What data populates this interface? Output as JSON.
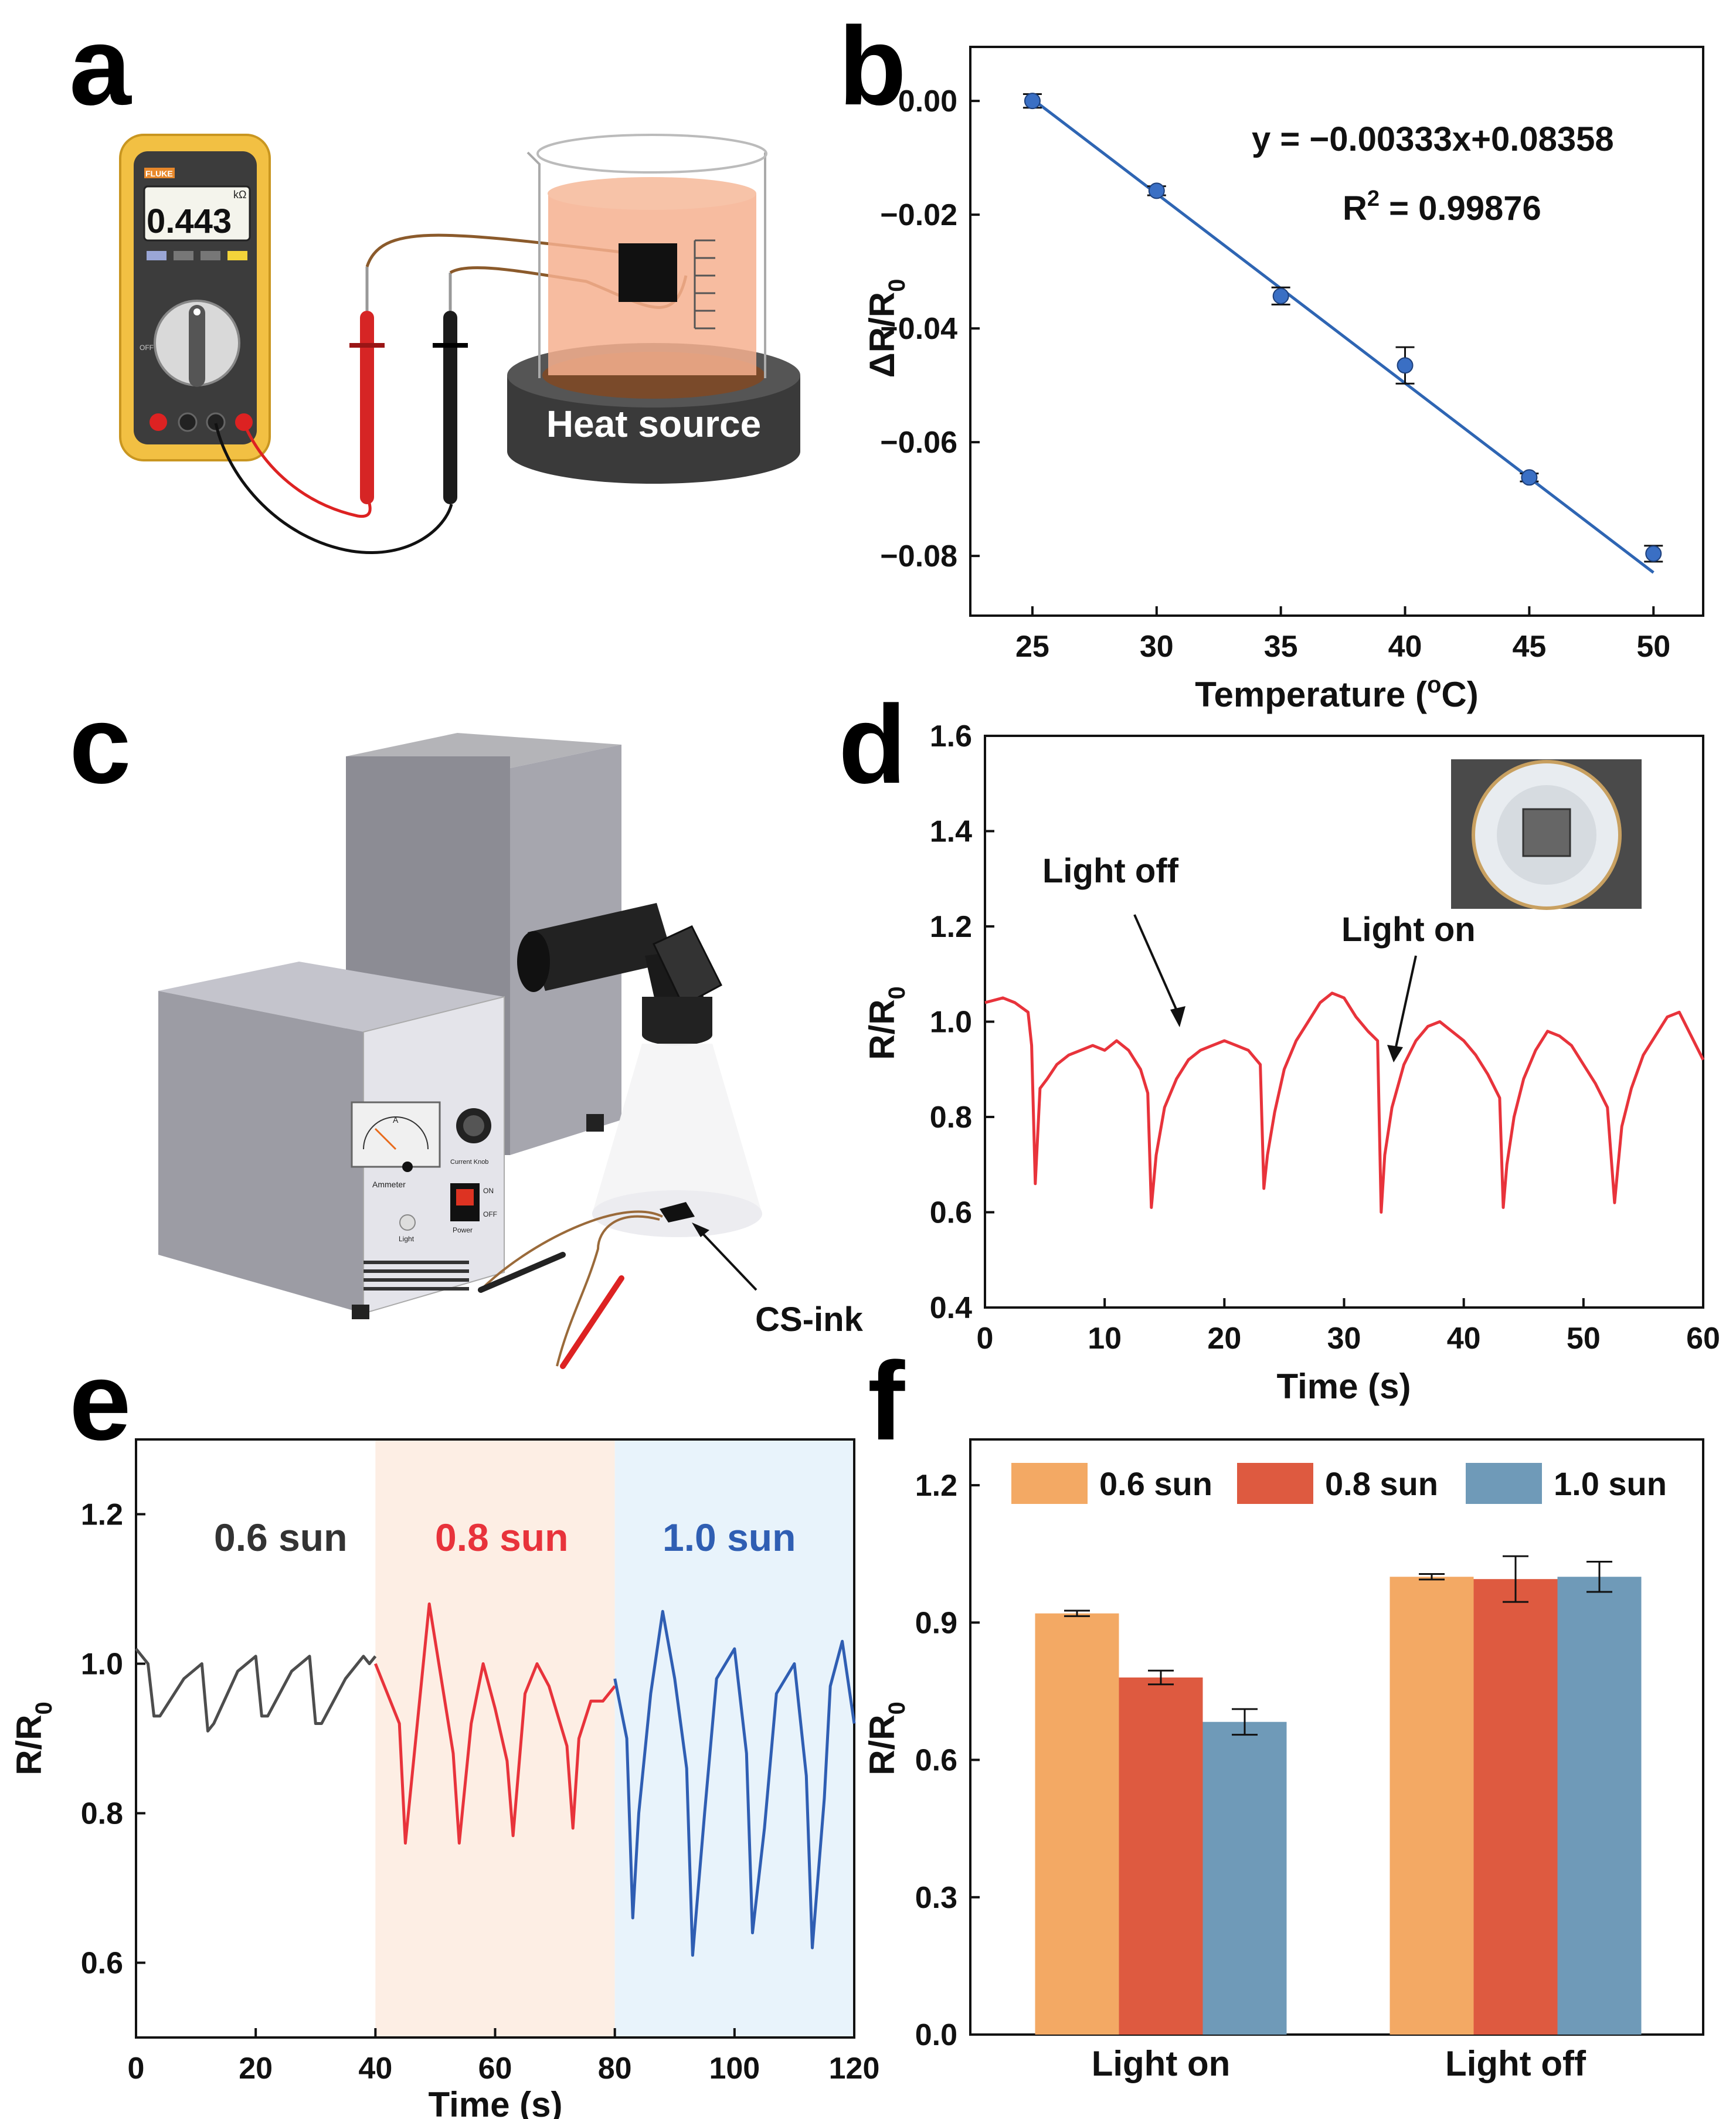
{
  "panel_labels": [
    "a",
    "b",
    "c",
    "d",
    "e",
    "f"
  ],
  "panel_a": {
    "meter_brand": "FLUKE",
    "meter_unit": "kΩ",
    "meter_reading": "0.443",
    "meter_off": "OFF",
    "heat_source_label": "Heat source"
  },
  "panel_c": {
    "ammeter_label": "Ammeter",
    "ammeter_dial": "A",
    "knob_label": "Current Knob",
    "on_label": "ON",
    "off_label": "OFF",
    "power_label": "Power",
    "light_label": "Light",
    "sample_label": "CS-ink"
  },
  "colors": {
    "fit_line": "#2e65b3",
    "points": "#3a6fc4",
    "curve_d": "#e8333b",
    "gray": "#4d4d4d",
    "red": "#e8333b",
    "blue": "#2f5eb3",
    "bar_06": "#f3a964",
    "bar_08": "#de5a40",
    "bar_10": "#6f9ab8"
  },
  "chart_data": [
    {
      "panel": "b",
      "type": "scatter",
      "xlabel": "Temperature (",
      "xlabel_sup": "o",
      "xlabel_end": "C)",
      "ylabel": "ΔR/R",
      "ylabel_sub": "0",
      "x": [
        25,
        30,
        35,
        40,
        45,
        50
      ],
      "y": [
        0.0,
        -0.0158,
        -0.0343,
        -0.0465,
        -0.0662,
        -0.0796
      ],
      "yerr": [
        0.0012,
        0.0008,
        0.0015,
        0.0032,
        0.0007,
        0.0014
      ],
      "xlim": [
        22.5,
        52
      ],
      "ylim": [
        -0.0905,
        0.0095
      ],
      "xticks": [
        25,
        30,
        35,
        40,
        45,
        50
      ],
      "yticks": [
        0.0,
        -0.02,
        -0.04,
        -0.06,
        -0.08
      ],
      "ytick_labels": [
        "0.00",
        "−0.02",
        "−0.04",
        "−0.06",
        "−0.08"
      ],
      "fit": {
        "slope": -0.00333,
        "intercept": 0.08358,
        "x_range": [
          25,
          50
        ]
      },
      "equation": "y = −0.00333x+0.08358",
      "r2_label": "R",
      "r2_sup": "2",
      "r2_value": " = 0.99876"
    },
    {
      "panel": "d",
      "type": "line",
      "xlabel": "Time (s)",
      "ylabel": "R/R",
      "ylabel_sub": "0",
      "xlim": [
        0,
        60
      ],
      "ylim": [
        0.4,
        1.6
      ],
      "xticks": [
        0,
        10,
        20,
        30,
        40,
        50,
        60
      ],
      "yticks": [
        0.4,
        0.6,
        0.8,
        1.0,
        1.2,
        1.4,
        1.6
      ],
      "ytick_labels": [
        "0.4",
        "0.6",
        "0.8",
        "1.0",
        "1.2",
        "1.4",
        "1.6"
      ],
      "annotations": [
        "Light off",
        "Light on"
      ],
      "series": [
        {
          "name": "R/R0",
          "x": [
            0,
            1.5,
            2.5,
            3.6,
            3.9,
            4.2,
            4.6,
            5.2,
            6,
            7,
            8,
            9,
            10,
            11,
            12,
            13,
            13.6,
            13.9,
            14.3,
            15,
            16,
            17,
            18,
            19,
            20,
            21,
            22,
            23,
            23.3,
            23.6,
            24.2,
            25,
            26,
            27,
            28,
            29,
            30,
            31,
            32,
            32.8,
            33.1,
            33.4,
            34,
            35,
            36,
            37,
            38,
            39,
            40,
            41,
            42,
            43,
            43.3,
            43.6,
            44.2,
            45,
            46,
            47,
            48,
            49,
            50,
            51,
            52,
            52.6,
            52.9,
            53.2,
            54,
            55,
            56,
            57,
            58,
            59,
            60
          ],
          "y": [
            1.04,
            1.05,
            1.04,
            1.02,
            0.95,
            0.66,
            0.86,
            0.88,
            0.91,
            0.93,
            0.94,
            0.95,
            0.94,
            0.96,
            0.94,
            0.9,
            0.85,
            0.61,
            0.72,
            0.82,
            0.88,
            0.92,
            0.94,
            0.95,
            0.96,
            0.95,
            0.94,
            0.91,
            0.65,
            0.72,
            0.81,
            0.9,
            0.96,
            1.0,
            1.04,
            1.06,
            1.05,
            1.01,
            0.98,
            0.96,
            0.6,
            0.72,
            0.82,
            0.91,
            0.96,
            0.99,
            1.0,
            0.98,
            0.96,
            0.93,
            0.89,
            0.84,
            0.61,
            0.7,
            0.8,
            0.88,
            0.94,
            0.98,
            0.97,
            0.95,
            0.91,
            0.87,
            0.82,
            0.62,
            0.7,
            0.78,
            0.86,
            0.93,
            0.97,
            1.01,
            1.02,
            0.97,
            0.92
          ]
        }
      ]
    },
    {
      "panel": "e",
      "type": "line",
      "xlabel": "Time (s)",
      "ylabel": "R/R",
      "ylabel_sub": "0",
      "xlim": [
        0,
        120
      ],
      "ylim": [
        0.5,
        1.3
      ],
      "xticks": [
        0,
        20,
        40,
        60,
        80,
        100,
        120
      ],
      "yticks": [
        0.6,
        0.8,
        1.0,
        1.2
      ],
      "ytick_labels": [
        "0.6",
        "0.8",
        "1.0",
        "1.2"
      ],
      "regions": [
        {
          "x": [
            40,
            80
          ],
          "color": "#fdeee4"
        },
        {
          "x": [
            80,
            120
          ],
          "color": "#e8f3fb"
        }
      ],
      "series": [
        {
          "name": "0.6 sun",
          "x": [
            0,
            2,
            3,
            4,
            8,
            11,
            12,
            13,
            17,
            20,
            21,
            22,
            26,
            29,
            30,
            31,
            35,
            38,
            39,
            40
          ],
          "y": [
            1.02,
            1.0,
            0.93,
            0.93,
            0.98,
            1.0,
            0.91,
            0.92,
            0.99,
            1.01,
            0.93,
            0.93,
            0.99,
            1.01,
            0.92,
            0.92,
            0.98,
            1.01,
            1.0,
            1.01
          ]
        },
        {
          "name": "0.8 sun",
          "x": [
            40,
            42,
            44,
            45,
            47,
            49,
            51,
            53,
            54,
            56,
            58,
            60,
            62,
            63,
            65,
            67,
            69,
            72,
            73,
            74,
            76,
            78,
            80
          ],
          "y": [
            1.0,
            0.96,
            0.92,
            0.76,
            0.92,
            1.08,
            0.98,
            0.88,
            0.76,
            0.92,
            1.0,
            0.94,
            0.87,
            0.77,
            0.96,
            1.0,
            0.97,
            0.89,
            0.78,
            0.9,
            0.95,
            0.95,
            0.97
          ]
        },
        {
          "name": "1.0 sun",
          "x": [
            80,
            82,
            83,
            84,
            86,
            88,
            90,
            92,
            93,
            95,
            97,
            100,
            102,
            103,
            105,
            107,
            110,
            112,
            113,
            115,
            116,
            118,
            120
          ],
          "y": [
            0.98,
            0.9,
            0.66,
            0.8,
            0.96,
            1.07,
            0.98,
            0.86,
            0.61,
            0.8,
            0.98,
            1.02,
            0.88,
            0.64,
            0.78,
            0.96,
            1.0,
            0.85,
            0.62,
            0.82,
            0.97,
            1.03,
            0.92
          ]
        }
      ],
      "series_labels": [
        "0.6 sun",
        "0.8 sun",
        "1.0 sun"
      ]
    },
    {
      "panel": "f",
      "type": "bar",
      "xlabel": "",
      "ylabel": "R/R",
      "ylabel_sub": "0",
      "categories": [
        "Light on",
        "Light off"
      ],
      "ylim": [
        0,
        1.3
      ],
      "yticks": [
        0.0,
        0.3,
        0.6,
        0.9,
        1.2
      ],
      "ytick_labels": [
        "0.0",
        "0.3",
        "0.6",
        "0.9",
        "1.2"
      ],
      "series": [
        {
          "name": "0.6 sun",
          "values": [
            0.92,
            1.0
          ],
          "errors": [
            0.006,
            0.006
          ]
        },
        {
          "name": "0.8 sun",
          "values": [
            0.78,
            0.995
          ],
          "errors": [
            0.015,
            0.05
          ]
        },
        {
          "name": "1.0 sun",
          "values": [
            0.683,
            1.0
          ],
          "errors": [
            0.028,
            0.033
          ]
        }
      ],
      "legend_position": "top"
    }
  ]
}
